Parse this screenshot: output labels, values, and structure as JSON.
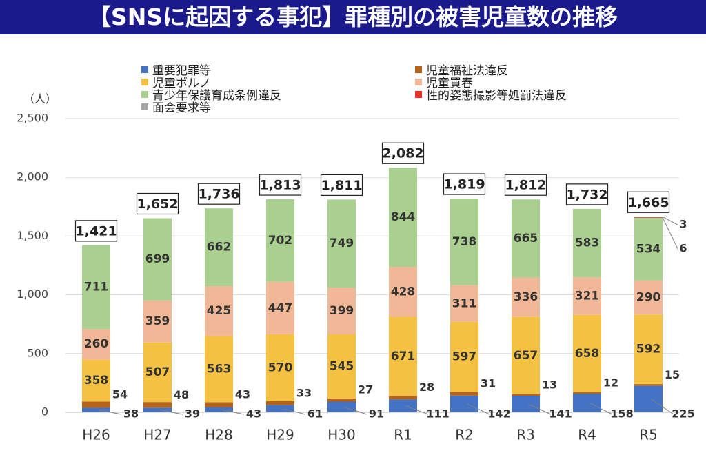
{
  "title": "【SNSに起因する事犯】罪種別の被害児童数の推移",
  "chart_data": {
    "type": "bar",
    "stacked": true,
    "unit_label": "（人）",
    "categories": [
      "H26",
      "H27",
      "H28",
      "H29",
      "H30",
      "R1",
      "R2",
      "R3",
      "R4",
      "R5"
    ],
    "ylim": [
      0,
      2500
    ],
    "yticks": [
      0,
      500,
      1000,
      1500,
      2000,
      2500
    ],
    "ytick_labels": [
      "0",
      "500",
      "1,000",
      "1,500",
      "2,000",
      "2,500"
    ],
    "series": [
      {
        "name": "重要犯罪等",
        "color": "#4472c4",
        "values": [
          38,
          39,
          43,
          61,
          91,
          111,
          142,
          141,
          158,
          225
        ]
      },
      {
        "name": "児童福祉法違反",
        "color": "#b5621b",
        "values": [
          54,
          48,
          43,
          33,
          27,
          28,
          31,
          13,
          12,
          15
        ]
      },
      {
        "name": "児童ポルノ",
        "color": "#f4c142",
        "values": [
          358,
          507,
          563,
          570,
          545,
          671,
          597,
          657,
          658,
          592
        ]
      },
      {
        "name": "児童買春",
        "color": "#f0b896",
        "values": [
          260,
          359,
          425,
          447,
          399,
          428,
          311,
          336,
          321,
          290
        ]
      },
      {
        "name": "青少年保護育成条例違反",
        "color": "#a9d08e",
        "values": [
          711,
          699,
          662,
          702,
          749,
          844,
          738,
          665,
          583,
          534
        ]
      },
      {
        "name": "性的姿態撮影等処罰法違反",
        "color": "#e8302a",
        "values": [
          0,
          0,
          0,
          0,
          0,
          0,
          0,
          0,
          0,
          6
        ]
      },
      {
        "name": "面会要求等",
        "color": "#a5a5a5",
        "values": [
          0,
          0,
          0,
          0,
          0,
          0,
          0,
          0,
          0,
          3
        ]
      }
    ],
    "totals": [
      "1,421",
      "1,652",
      "1,736",
      "1,813",
      "1,811",
      "2,082",
      "1,819",
      "1,812",
      "1,732",
      "1,665"
    ],
    "legend_position": "top"
  }
}
